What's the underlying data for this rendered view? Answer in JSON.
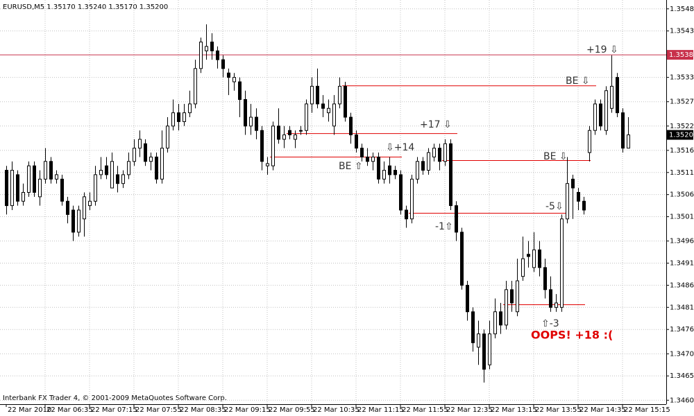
{
  "chart_data": {
    "type": "candlestick",
    "title": "EURUSD,M5  1.35170 1.35240 1.35170 1.35200",
    "footer": "Interbank FX Trader 4, © 2001-2009 MetaQuotes Software Corp.",
    "categories": [
      "22 Mar 2010",
      null,
      null,
      null,
      null,
      null,
      null,
      "22 Mar 06:35",
      null,
      null,
      null,
      null,
      null,
      null,
      null,
      "22 Mar 07:15",
      null,
      null,
      null,
      null,
      null,
      null,
      null,
      "22 Mar 07:55",
      null,
      null,
      null,
      null,
      null,
      null,
      null,
      "22 Mar 08:35",
      null,
      null,
      null,
      null,
      null,
      null,
      null,
      "22 Mar 09:15",
      null,
      null,
      null,
      null,
      null,
      null,
      null,
      "22 Mar 09:55",
      null,
      null,
      null,
      null,
      null,
      null,
      null,
      "22 Mar 10:35",
      null,
      null,
      null,
      null,
      null,
      null,
      null,
      "22 Mar 11:15",
      null,
      null,
      null,
      null,
      null,
      null,
      null,
      "22 Mar 11:55",
      null,
      null,
      null,
      null,
      null,
      null,
      null,
      "22 Mar 12:35",
      null,
      null,
      null,
      null,
      null,
      null,
      null,
      "22 Mar 13:15",
      null,
      null,
      null,
      null,
      null,
      null,
      null,
      "22 Mar 13:55",
      null,
      null,
      null,
      null,
      null,
      null,
      null,
      "22 Mar 14:35",
      null,
      null,
      null,
      null,
      null,
      null,
      null,
      "22 Mar 15:15",
      null
    ],
    "open": [
      1.3512,
      1.3504,
      1.3511,
      1.3505,
      1.3507,
      1.3513,
      1.3506,
      1.351,
      1.3514,
      1.351,
      1.351,
      1.3505,
      1.3503,
      1.3498,
      1.3501,
      1.3504,
      1.3505,
      1.3511,
      1.3513,
      1.3508,
      1.3511,
      1.3509,
      1.3511,
      1.3514,
      1.3517,
      1.3518,
      1.3514,
      1.3515,
      1.351,
      1.3517,
      1.3522,
      1.3525,
      1.3523,
      1.3525,
      1.3527,
      1.3535,
      1.3539,
      1.3541,
      1.3539,
      1.3537,
      1.3534,
      1.3532,
      1.3532,
      1.3528,
      1.3522,
      1.3524,
      1.3521,
      1.3513,
      1.3513,
      1.3522,
      1.3519,
      1.3521,
      1.3519,
      1.3521,
      1.3521,
      1.3527,
      1.3531,
      1.3527,
      1.3525,
      1.3522,
      1.3527,
      1.3531,
      1.3524,
      1.352,
      1.3517,
      1.3515,
      1.3514,
      1.3515,
      1.351,
      1.3513,
      1.3512,
      1.3511,
      1.3503,
      1.3501,
      1.351,
      1.3514,
      1.3512,
      1.3515,
      1.3517,
      1.3514,
      1.3518,
      1.3504,
      1.3498,
      1.3486,
      1.348,
      1.3472,
      1.3475,
      1.3468,
      1.3475,
      1.348,
      1.3477,
      1.3485,
      1.348,
      1.3488,
      1.3493,
      1.349,
      1.3494,
      1.349,
      1.3485,
      1.3481,
      1.3481,
      1.3501,
      1.351,
      1.3507,
      1.3505,
      1.3516,
      1.3521,
      1.3527,
      1.3521,
      1.3526,
      1.3533,
      1.3525,
      1.3517
    ],
    "high": [
      1.3513,
      1.3514,
      1.3512,
      1.3509,
      1.3514,
      1.3514,
      1.3512,
      1.3517,
      1.3515,
      1.3512,
      1.3511,
      1.3506,
      1.3504,
      1.3504,
      1.3507,
      1.3507,
      1.3513,
      1.3515,
      1.3515,
      1.3516,
      1.3513,
      1.3512,
      1.3516,
      1.3519,
      1.3521,
      1.3519,
      1.3516,
      1.3516,
      1.3521,
      1.3524,
      1.3528,
      1.3527,
      1.3527,
      1.353,
      1.3537,
      1.3542,
      1.3545,
      1.3543,
      1.354,
      1.3538,
      1.3535,
      1.3534,
      1.3533,
      1.353,
      1.3527,
      1.3526,
      1.3522,
      1.3515,
      1.3523,
      1.3526,
      1.3522,
      1.3522,
      1.3521,
      1.3522,
      1.3528,
      1.3533,
      1.3535,
      1.3529,
      1.3528,
      1.3529,
      1.3533,
      1.3532,
      1.3525,
      1.3521,
      1.3518,
      1.3517,
      1.3516,
      1.3516,
      1.3514,
      1.3515,
      1.3513,
      1.3512,
      1.3504,
      1.3511,
      1.3515,
      1.3515,
      1.3517,
      1.3518,
      1.3518,
      1.3519,
      1.3519,
      1.3505,
      1.3499,
      1.3487,
      1.3481,
      1.3478,
      1.3476,
      1.3478,
      1.3483,
      1.3482,
      1.3487,
      1.3487,
      1.3492,
      1.3497,
      1.3496,
      1.3498,
      1.3496,
      1.3492,
      1.3488,
      1.3484,
      1.3502,
      1.3515,
      1.3511,
      1.3508,
      1.3506,
      1.3522,
      1.3528,
      1.3528,
      1.3531,
      1.3538,
      1.3534,
      1.3526,
      1.3524
    ],
    "low": [
      1.3502,
      1.3503,
      1.3504,
      1.3504,
      1.3506,
      1.3506,
      1.3504,
      1.3509,
      1.3509,
      1.3509,
      1.3504,
      1.35,
      1.3496,
      1.3497,
      1.3497,
      1.3503,
      1.3504,
      1.351,
      1.351,
      1.3508,
      1.3507,
      1.3508,
      1.351,
      1.3513,
      1.3515,
      1.3513,
      1.3512,
      1.3509,
      1.3509,
      1.3516,
      1.3521,
      1.3521,
      1.3522,
      1.3524,
      1.3526,
      1.3534,
      1.3537,
      1.3537,
      1.3535,
      1.3533,
      1.3529,
      1.353,
      1.3524,
      1.352,
      1.352,
      1.3519,
      1.3512,
      1.3511,
      1.3512,
      1.3518,
      1.3517,
      1.3519,
      1.3517,
      1.352,
      1.352,
      1.3525,
      1.3526,
      1.3524,
      1.3523,
      1.352,
      1.3526,
      1.3523,
      1.3518,
      1.3516,
      1.3514,
      1.3513,
      1.3512,
      1.3509,
      1.3509,
      1.3509,
      1.351,
      1.3502,
      1.3499,
      1.35,
      1.3509,
      1.3511,
      1.3511,
      1.3514,
      1.3512,
      1.3513,
      1.3503,
      1.3496,
      1.3485,
      1.3478,
      1.3471,
      1.3468,
      1.3464,
      1.3467,
      1.3474,
      1.3475,
      1.3476,
      1.348,
      1.3479,
      1.3487,
      1.349,
      1.3489,
      1.3488,
      1.3483,
      1.348,
      1.348,
      1.348,
      1.35,
      1.3501,
      1.3503,
      1.3502,
      1.3514,
      1.352,
      1.3521,
      1.352,
      1.3525,
      1.3524,
      1.3516,
      1.3517
    ],
    "close": [
      1.3504,
      1.3512,
      1.3505,
      1.3507,
      1.3513,
      1.3507,
      1.351,
      1.3514,
      1.351,
      1.3511,
      1.3505,
      1.3502,
      1.3498,
      1.3503,
      1.3506,
      1.3505,
      1.3511,
      1.3512,
      1.3511,
      1.3514,
      1.3509,
      1.3511,
      1.3514,
      1.3517,
      1.3519,
      1.3514,
      1.3515,
      1.351,
      1.3517,
      1.3522,
      1.3525,
      1.3523,
      1.3525,
      1.3527,
      1.3535,
      1.3541,
      1.354,
      1.3539,
      1.3537,
      1.3535,
      1.3533,
      1.3533,
      1.3528,
      1.3522,
      1.3524,
      1.3521,
      1.3514,
      1.35135,
      1.3522,
      1.3519,
      1.352,
      1.352,
      1.352,
      1.3521,
      1.3527,
      1.3531,
      1.3527,
      1.3526,
      1.3526,
      1.3527,
      1.3531,
      1.3524,
      1.352,
      1.3517,
      1.3515,
      1.3514,
      1.3515,
      1.351,
      1.3512,
      1.3511,
      1.3511,
      1.3503,
      1.3501,
      1.351,
      1.3514,
      1.3512,
      1.3516,
      1.3517,
      1.3514,
      1.3518,
      1.3504,
      1.3498,
      1.3486,
      1.348,
      1.3473,
      1.3475,
      1.3467,
      1.3475,
      1.348,
      1.3477,
      1.3485,
      1.3482,
      1.3487,
      1.3492,
      1.34925,
      1.3494,
      1.349,
      1.3485,
      1.3481,
      1.3482,
      1.3501,
      1.3509,
      1.3508,
      1.3505,
      1.3503,
      1.3521,
      1.3527,
      1.3522,
      1.353,
      1.3531,
      1.3525,
      1.3517,
      1.352
    ],
    "up_color": "#ffffff",
    "down_color": "#000000",
    "ylim": [
      1.34591,
      1.35505
    ],
    "yticks": [
      {
        "value": 1.35485,
        "label": "1.35485"
      },
      {
        "value": 1.35435,
        "label": "1.35435"
      },
      {
        "value": 1.3533,
        "label": "1.35330"
      },
      {
        "value": 1.35275,
        "label": "1.35275"
      },
      {
        "value": 1.3522,
        "label": "1.35220"
      },
      {
        "value": 1.35165,
        "label": "1.35165"
      },
      {
        "value": 1.35115,
        "label": "1.35115"
      },
      {
        "value": 1.35065,
        "label": "1.35065"
      },
      {
        "value": 1.35015,
        "label": "1.35015"
      },
      {
        "value": 1.3496,
        "label": "1.34960"
      },
      {
        "value": 1.3491,
        "label": "1.34910"
      },
      {
        "value": 1.3486,
        "label": "1.34860"
      },
      {
        "value": 1.3481,
        "label": "1.34810"
      },
      {
        "value": 1.3476,
        "label": "1.34760"
      },
      {
        "value": 1.34705,
        "label": "1.34705"
      },
      {
        "value": 1.34655,
        "label": "1.34655"
      },
      {
        "value": 1.346,
        "label": "1.34600"
      }
    ],
    "grid": true,
    "hline": {
      "value": 1.35381,
      "color": "#c8304a"
    },
    "bid": {
      "value": 1.352,
      "label": "1.35200"
    },
    "trade_levels": [
      1.35311,
      1.35203,
      1.3515,
      1.35142,
      1.35023,
      1.34816
    ],
    "level_color": "#e00000",
    "annotations": [
      {
        "text": "+19 ⇩",
        "color": "#333333"
      },
      {
        "text": "BE ⇩",
        "color": "#333333"
      },
      {
        "text": "+17 ⇩",
        "color": "#333333"
      },
      {
        "text": "⇩+14",
        "color": "#333333"
      },
      {
        "text": "BE ⇧",
        "color": "#333333"
      },
      {
        "text": "BE ⇩",
        "color": "#333333"
      },
      {
        "text": "-5⇩",
        "color": "#333333"
      },
      {
        "text": "-1⇧",
        "color": "#333333"
      },
      {
        "text": "⇧-3",
        "color": "#333333"
      },
      {
        "text": "OOPS! +18 :(",
        "color": "#e00000"
      }
    ]
  }
}
